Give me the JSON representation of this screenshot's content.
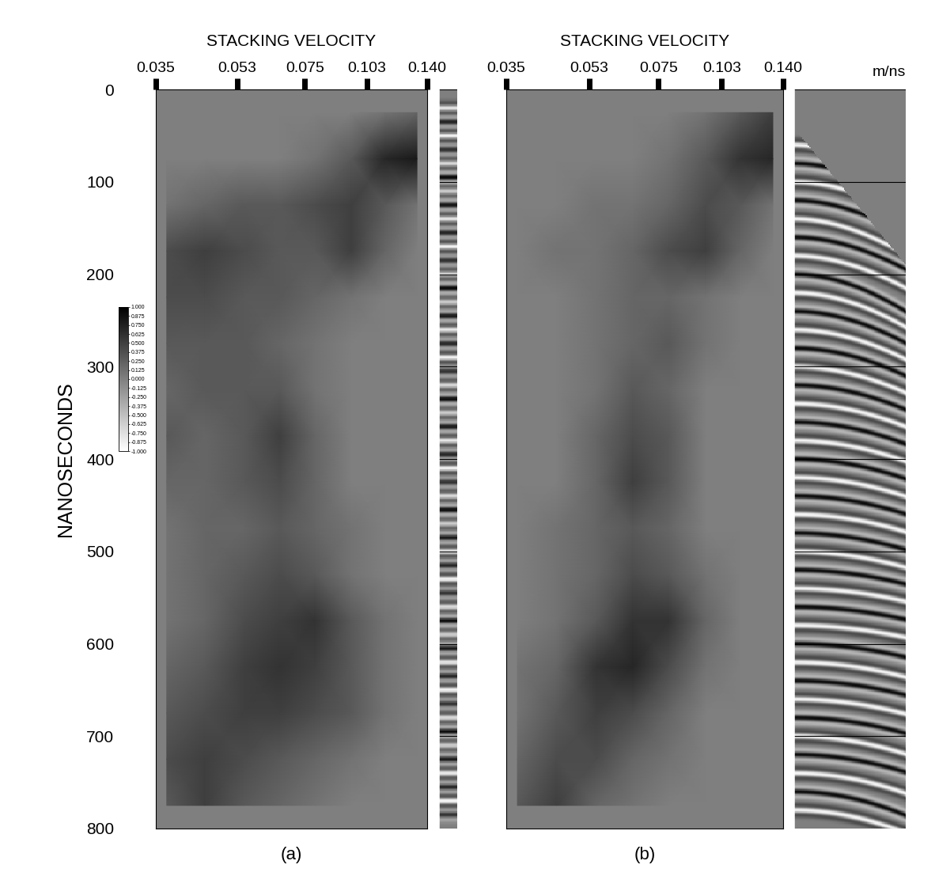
{
  "chart_data": [
    {
      "type": "heatmap",
      "title": "STACKING VELOCITY",
      "panel_label": "(a)",
      "ylabel": "NANOSECONDS",
      "log": "x",
      "xlim": [
        0.035,
        0.14
      ],
      "xticks": [
        0.035,
        0.053,
        0.075,
        0.103,
        {
          "value": 0.14,
          "label": "0.140"
        }
      ],
      "ylim": [
        800,
        0
      ],
      "yticks": [
        0,
        100,
        200,
        300,
        400,
        500,
        600,
        700,
        800
      ],
      "grid": true,
      "velocities": [
        0.037,
        0.045,
        0.055,
        0.066,
        0.079,
        0.095,
        0.113,
        0.133
      ],
      "times": [
        25,
        75,
        125,
        175,
        225,
        275,
        325,
        375,
        425,
        475,
        525,
        575,
        625,
        675,
        725,
        775
      ],
      "cells": [
        [
          0,
          0,
          0,
          0,
          0,
          0,
          0.1,
          0.2
        ],
        [
          0,
          0,
          0,
          0,
          0.1,
          0.3,
          0.7,
          0.8
        ],
        [
          0.1,
          0.2,
          0.3,
          0.3,
          0.4,
          0.5,
          0.3,
          0.1
        ],
        [
          0.4,
          0.5,
          0.4,
          0.3,
          0.3,
          0.5,
          0.2,
          0
        ],
        [
          0.4,
          0.4,
          0.3,
          0.3,
          0.2,
          0.1,
          0,
          0
        ],
        [
          0.3,
          0.3,
          0.3,
          0.2,
          0.1,
          0,
          0,
          0
        ],
        [
          0.2,
          0.3,
          0.3,
          0.3,
          0.1,
          0,
          0,
          0
        ],
        [
          0.3,
          0.2,
          0.3,
          0.5,
          0.2,
          0,
          0,
          0
        ],
        [
          0.2,
          0.2,
          0.3,
          0.4,
          0.2,
          0,
          0,
          0
        ],
        [
          0.1,
          0.2,
          0.2,
          0.3,
          0.2,
          0.1,
          0,
          0
        ],
        [
          0.1,
          0.2,
          0.3,
          0.4,
          0.3,
          0.1,
          0,
          0
        ],
        [
          0.1,
          0.2,
          0.4,
          0.5,
          0.6,
          0.3,
          0.1,
          0
        ],
        [
          0.2,
          0.3,
          0.5,
          0.6,
          0.5,
          0.3,
          0.1,
          0
        ],
        [
          0.3,
          0.4,
          0.5,
          0.5,
          0.4,
          0.3,
          0.1,
          0
        ],
        [
          0.4,
          0.5,
          0.4,
          0.3,
          0.2,
          0.1,
          0,
          0
        ],
        [
          0.3,
          0.5,
          0.3,
          0.2,
          0.1,
          0,
          0,
          0
        ]
      ],
      "color_range": [
        -1,
        1
      ],
      "colorbar_ticks": [
        {
          "value": 1,
          "label": "1.000"
        },
        {
          "value": 0.875,
          "label": "0.875"
        },
        {
          "value": 0.75,
          "label": "0.750"
        },
        {
          "value": 0.625,
          "label": "0.625"
        },
        {
          "value": 0.5,
          "label": "0.500"
        },
        {
          "value": 0.375,
          "label": "0.375"
        },
        {
          "value": 0.25,
          "label": "0.250"
        },
        {
          "value": 0.125,
          "label": "0.125"
        },
        {
          "value": 0,
          "label": "0.000"
        },
        {
          "value": -0.125,
          "label": "-0.125"
        },
        {
          "value": -0.25,
          "label": "-0.250"
        },
        {
          "value": -0.375,
          "label": "-0.375"
        },
        {
          "value": -0.5,
          "label": "-0.500"
        },
        {
          "value": -0.625,
          "label": "-0.625"
        },
        {
          "value": -0.75,
          "label": "-0.750"
        },
        {
          "value": -0.875,
          "label": "-0.875"
        },
        {
          "value": -1,
          "label": "-1.000"
        }
      ],
      "gather": {
        "offsets": [
          0,
          2
        ],
        "t0": [
          20,
          35,
          50,
          65,
          80,
          95,
          110,
          125,
          140,
          155,
          170,
          185,
          200,
          215,
          230,
          245,
          260,
          275,
          290,
          305,
          320,
          335,
          350,
          365,
          380,
          395,
          410,
          425,
          440,
          455,
          470,
          485,
          500,
          515,
          530,
          545,
          560,
          575,
          590,
          605,
          620,
          635,
          650,
          665,
          680,
          695,
          710,
          725,
          740,
          755,
          770,
          785
        ],
        "amplitudes": [
          0.8,
          -0.7,
          0.9,
          -0.6,
          0.7,
          -0.9,
          0.6,
          -0.8,
          0.8,
          -0.7,
          0.9,
          -0.6,
          0.7,
          -0.9,
          0.6,
          -0.8,
          0.8,
          -0.7,
          0.9,
          -0.6,
          0.7,
          -0.9,
          0.6,
          -0.8,
          0.8,
          -0.7,
          0.9,
          -0.6,
          0.7,
          -0.9,
          0.6,
          -0.8,
          0.8,
          -0.7,
          0.9,
          -0.6,
          0.7,
          -0.9,
          0.6,
          -0.8,
          0.8,
          -0.7,
          0.9,
          -0.6,
          0.7,
          -0.9,
          0.6,
          -0.8,
          0.8,
          -0.7,
          0.9,
          -0.6
        ]
      }
    },
    {
      "type": "heatmap",
      "title": "STACKING VELOCITY",
      "panel_label": "(b)",
      "xlabel": "m/ns",
      "log": "x",
      "xlim": [
        0.035,
        0.14
      ],
      "xticks": [
        0.035,
        0.053,
        0.075,
        0.103,
        {
          "value": 0.14,
          "label": "0.140"
        }
      ],
      "ylim": [
        800,
        0
      ],
      "yticks": [
        0,
        100,
        200,
        300,
        400,
        500,
        600,
        700,
        800
      ],
      "grid": true,
      "tick_labels": "x",
      "velocities": [
        0.037,
        0.045,
        0.055,
        0.066,
        0.079,
        0.095,
        0.113,
        0.133
      ],
      "times": [
        25,
        75,
        125,
        175,
        225,
        275,
        325,
        375,
        425,
        475,
        525,
        575,
        625,
        675,
        725,
        775
      ],
      "cells": [
        [
          0,
          0,
          0,
          0,
          0,
          0.1,
          0.3,
          0.5
        ],
        [
          0,
          0,
          0,
          0,
          0.1,
          0.3,
          0.6,
          0.7
        ],
        [
          0,
          0,
          0.1,
          0.1,
          0.2,
          0.4,
          0.3,
          0.1
        ],
        [
          0,
          0.1,
          0.1,
          0.2,
          0.4,
          0.5,
          0.2,
          0
        ],
        [
          0,
          0,
          0.1,
          0.2,
          0.2,
          0.1,
          0,
          0
        ],
        [
          0,
          0,
          0.1,
          0.2,
          0.3,
          0.1,
          0,
          0
        ],
        [
          0,
          0,
          0.1,
          0.3,
          0.2,
          0,
          0,
          0
        ],
        [
          0,
          0,
          0.2,
          0.4,
          0.3,
          0,
          0,
          0
        ],
        [
          0,
          0,
          0.2,
          0.5,
          0.3,
          0,
          0,
          0
        ],
        [
          0,
          0.1,
          0.2,
          0.3,
          0.2,
          0,
          0,
          0
        ],
        [
          0,
          0.1,
          0.2,
          0.4,
          0.3,
          0.1,
          0,
          0
        ],
        [
          0,
          0.1,
          0.3,
          0.6,
          0.6,
          0.2,
          0,
          0
        ],
        [
          0.1,
          0.2,
          0.6,
          0.7,
          0.4,
          0.1,
          0,
          0
        ],
        [
          0.1,
          0.3,
          0.5,
          0.4,
          0.2,
          0,
          0,
          0
        ],
        [
          0.2,
          0.4,
          0.4,
          0.2,
          0.1,
          0,
          0,
          0
        ],
        [
          0.3,
          0.5,
          0.2,
          0.1,
          0,
          0,
          0,
          0
        ]
      ],
      "color_range": [
        -1,
        1
      ],
      "gather": {
        "offsets": [
          0,
          10
        ],
        "mute": {
          "offsets": [
            0,
            10
          ],
          "times": [
            40,
            190
          ]
        },
        "t0": [
          60,
          80,
          100,
          120,
          140,
          160,
          180,
          200,
          220,
          240,
          260,
          280,
          300,
          320,
          340,
          360,
          380,
          400,
          420,
          440,
          460,
          480,
          500,
          520,
          540,
          560,
          580,
          600,
          620,
          640,
          660,
          680,
          700,
          720,
          740,
          760,
          780
        ],
        "velocities": [
          0.12,
          0.12,
          0.11,
          0.1,
          0.09,
          0.09,
          0.085,
          0.075,
          0.075,
          0.075,
          0.075,
          0.075,
          0.075,
          0.075,
          0.075,
          0.075,
          0.075,
          0.075,
          0.075,
          0.075,
          0.075,
          0.075,
          0.075,
          0.078,
          0.08,
          0.08,
          0.08,
          0.075,
          0.07,
          0.07,
          0.068,
          0.065,
          0.06,
          0.06,
          0.055,
          0.05,
          0.05
        ],
        "amplitudes": [
          0.9,
          -0.9,
          0.9,
          -0.9,
          0.9,
          -0.9,
          0.9,
          -0.9,
          0.9,
          -0.9,
          0.9,
          -0.9,
          0.9,
          -0.9,
          0.9,
          -0.9,
          0.9,
          -0.9,
          0.9,
          -0.9,
          0.9,
          -0.9,
          0.9,
          -0.9,
          0.9,
          -0.9,
          0.9,
          -0.9,
          0.9,
          -0.9,
          0.9,
          -0.9,
          0.9,
          -0.9,
          0.9,
          -0.9,
          0.9
        ]
      }
    }
  ]
}
